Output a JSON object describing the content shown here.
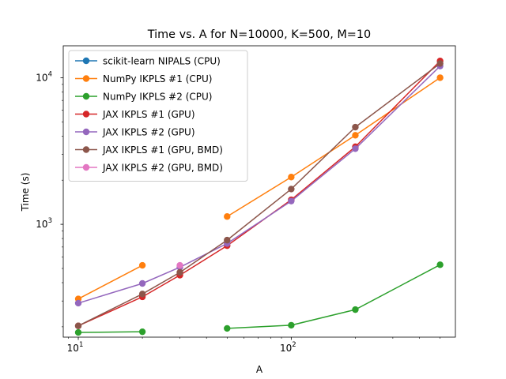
{
  "chart_data": {
    "type": "line",
    "title": "Time vs. A for N=10000, K=500, M=10",
    "xlabel": "A",
    "ylabel": "Time (s)",
    "xscale": "log",
    "yscale": "log",
    "xlim": [
      8.5,
      590
    ],
    "ylim": [
      170,
      16500
    ],
    "x_ticks": [
      {
        "value": 10,
        "base": "10",
        "exp": "1"
      },
      {
        "value": 100,
        "base": "10",
        "exp": "2"
      }
    ],
    "y_ticks": [
      {
        "value": 1000,
        "base": "10",
        "exp": "3"
      },
      {
        "value": 10000,
        "base": "10",
        "exp": "4"
      }
    ],
    "grid": false,
    "legend_position": "upper-left",
    "series": [
      {
        "name": "scikit-learn NIPALS (CPU)",
        "color": "#1f77b4",
        "points": []
      },
      {
        "name": "NumPy IKPLS #1 (CPU)",
        "color": "#ff7f0e",
        "points": [
          [
            10,
            310
          ],
          [
            20,
            525
          ],
          [
            null,
            null
          ],
          [
            50,
            1130
          ],
          [
            100,
            2100
          ],
          [
            200,
            4050
          ],
          [
            500,
            10000
          ]
        ]
      },
      {
        "name": "NumPy IKPLS #2 (CPU)",
        "color": "#2ca02c",
        "points": [
          [
            10,
            183
          ],
          [
            20,
            185
          ],
          [
            null,
            null
          ],
          [
            50,
            195
          ],
          [
            100,
            205
          ],
          [
            200,
            262
          ],
          [
            500,
            530
          ]
        ]
      },
      {
        "name": "JAX IKPLS #1 (GPU)",
        "color": "#d62728",
        "points": [
          [
            10,
            203
          ],
          [
            20,
            320
          ],
          [
            30,
            450
          ],
          [
            50,
            715
          ],
          [
            100,
            1470
          ],
          [
            200,
            3380
          ],
          [
            500,
            13000
          ]
        ]
      },
      {
        "name": "JAX IKPLS #2 (GPU)",
        "color": "#9467bd",
        "points": [
          [
            10,
            290
          ],
          [
            20,
            395
          ],
          [
            30,
            510
          ],
          [
            50,
            740
          ],
          [
            100,
            1440
          ],
          [
            200,
            3280
          ],
          [
            500,
            12000
          ]
        ]
      },
      {
        "name": "JAX IKPLS #1 (GPU, BMD)",
        "color": "#8c564b",
        "points": [
          [
            10,
            203
          ],
          [
            20,
            335
          ],
          [
            30,
            470
          ],
          [
            50,
            780
          ],
          [
            100,
            1740
          ],
          [
            200,
            4600
          ],
          [
            500,
            12500
          ]
        ]
      },
      {
        "name": "JAX IKPLS #2 (GPU, BMD)",
        "color": "#e377c2",
        "points": [
          [
            30,
            525
          ]
        ]
      }
    ]
  }
}
